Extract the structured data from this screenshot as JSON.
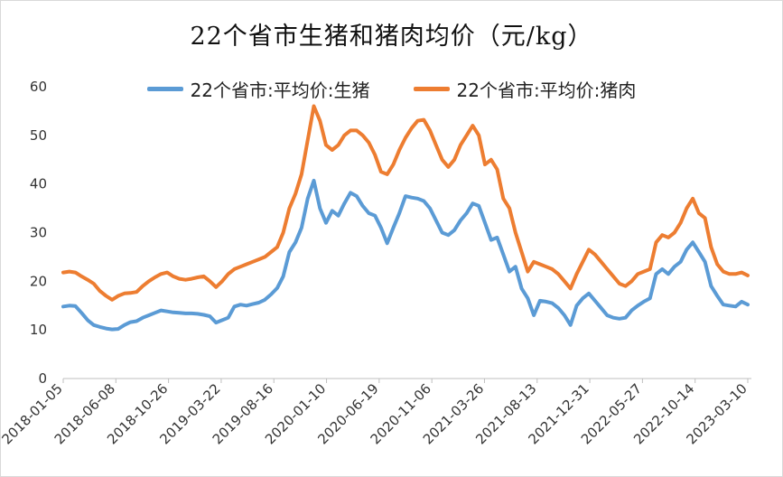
{
  "chart_data": {
    "type": "line",
    "title": "22个省市生猪和猪肉均价（元/kg）",
    "xlabel": "",
    "ylabel": "",
    "ylim": [
      0,
      60
    ],
    "yticks": [
      "0",
      "10",
      "20",
      "30",
      "40",
      "50",
      "60"
    ],
    "x_ticks": [
      "2018-01-05",
      "2018-06-08",
      "2018-10-26",
      "2019-03-22",
      "2019-08-16",
      "2020-01-10",
      "2020-06-19",
      "2020-11-06",
      "2021-03-26",
      "2021-08-13",
      "2021-12-31",
      "2022-05-27",
      "2022-10-14",
      "2023-03-10"
    ],
    "series": [
      {
        "name": "22个省市:平均价:生猪",
        "color": "#5b9bd5",
        "points": [
          [
            0,
            14.8
          ],
          [
            1,
            15
          ],
          [
            2,
            14.9
          ],
          [
            3,
            13.5
          ],
          [
            4,
            12
          ],
          [
            5,
            11
          ],
          [
            6,
            10.6
          ],
          [
            7,
            10.3
          ],
          [
            8,
            10.1
          ],
          [
            9,
            10.2
          ],
          [
            10,
            11
          ],
          [
            11,
            11.6
          ],
          [
            12,
            11.8
          ],
          [
            13,
            12.5
          ],
          [
            14,
            13
          ],
          [
            15,
            13.5
          ],
          [
            16,
            14
          ],
          [
            17,
            13.8
          ],
          [
            18,
            13.6
          ],
          [
            19,
            13.5
          ],
          [
            20,
            13.4
          ],
          [
            21,
            13.4
          ],
          [
            22,
            13.3
          ],
          [
            23,
            13.1
          ],
          [
            24,
            12.8
          ],
          [
            25,
            11.5
          ],
          [
            26,
            12
          ],
          [
            27,
            12.5
          ],
          [
            28,
            14.8
          ],
          [
            29,
            15.2
          ],
          [
            30,
            15
          ],
          [
            31,
            15.3
          ],
          [
            32,
            15.6
          ],
          [
            33,
            16.2
          ],
          [
            34,
            17.3
          ],
          [
            35,
            18.6
          ],
          [
            36,
            21
          ],
          [
            37,
            26
          ],
          [
            38,
            28
          ],
          [
            39,
            31
          ],
          [
            40,
            37
          ],
          [
            41,
            40.7
          ],
          [
            42,
            35
          ],
          [
            43,
            32
          ],
          [
            44,
            34.5
          ],
          [
            45,
            33.5
          ],
          [
            46,
            36
          ],
          [
            47,
            38.2
          ],
          [
            48,
            37.5
          ],
          [
            49,
            35.5
          ],
          [
            50,
            34
          ],
          [
            51,
            33.5
          ],
          [
            52,
            31
          ],
          [
            53,
            27.8
          ],
          [
            54,
            31
          ],
          [
            55,
            34
          ],
          [
            56,
            37.5
          ],
          [
            57,
            37.2
          ],
          [
            58,
            37
          ],
          [
            59,
            36.5
          ],
          [
            60,
            35
          ],
          [
            61,
            32.5
          ],
          [
            62,
            30
          ],
          [
            63,
            29.5
          ],
          [
            64,
            30.5
          ],
          [
            65,
            32.5
          ],
          [
            66,
            34
          ],
          [
            67,
            36
          ],
          [
            68,
            35.5
          ],
          [
            69,
            32
          ],
          [
            70,
            28.5
          ],
          [
            71,
            29
          ],
          [
            72,
            25.5
          ],
          [
            73,
            22
          ],
          [
            74,
            23
          ],
          [
            75,
            18.5
          ],
          [
            76,
            16.5
          ],
          [
            77,
            13
          ],
          [
            78,
            16
          ],
          [
            79,
            15.8
          ],
          [
            80,
            15.5
          ],
          [
            81,
            14.5
          ],
          [
            82,
            13
          ],
          [
            83,
            11
          ],
          [
            84,
            15
          ],
          [
            85,
            16.5
          ],
          [
            86,
            17.5
          ],
          [
            87,
            16
          ],
          [
            88,
            14.5
          ],
          [
            89,
            13
          ],
          [
            90,
            12.5
          ],
          [
            91,
            12.3
          ],
          [
            92,
            12.5
          ],
          [
            93,
            14
          ],
          [
            94,
            15
          ],
          [
            95,
            15.8
          ],
          [
            96,
            16.5
          ],
          [
            97,
            21.5
          ],
          [
            98,
            22.5
          ],
          [
            99,
            21.5
          ],
          [
            100,
            23
          ],
          [
            101,
            24
          ],
          [
            102,
            26.5
          ],
          [
            103,
            28
          ],
          [
            104,
            26
          ],
          [
            105,
            24
          ],
          [
            106,
            19
          ],
          [
            107,
            17
          ],
          [
            108,
            15.2
          ],
          [
            109,
            15
          ],
          [
            110,
            14.8
          ],
          [
            111,
            15.8
          ],
          [
            112,
            15.2
          ]
        ]
      },
      {
        "name": "22个省市:平均价:猪肉",
        "color": "#ed7d31",
        "points": [
          [
            0,
            21.8
          ],
          [
            1,
            22
          ],
          [
            2,
            21.8
          ],
          [
            3,
            21
          ],
          [
            4,
            20.3
          ],
          [
            5,
            19.5
          ],
          [
            6,
            18
          ],
          [
            7,
            17
          ],
          [
            8,
            16.2
          ],
          [
            9,
            17
          ],
          [
            10,
            17.5
          ],
          [
            11,
            17.6
          ],
          [
            12,
            17.8
          ],
          [
            13,
            19
          ],
          [
            14,
            20
          ],
          [
            15,
            20.8
          ],
          [
            16,
            21.5
          ],
          [
            17,
            21.8
          ],
          [
            18,
            21
          ],
          [
            19,
            20.5
          ],
          [
            20,
            20.3
          ],
          [
            21,
            20.5
          ],
          [
            22,
            20.8
          ],
          [
            23,
            21
          ],
          [
            24,
            20
          ],
          [
            25,
            18.8
          ],
          [
            26,
            20
          ],
          [
            27,
            21.5
          ],
          [
            28,
            22.5
          ],
          [
            29,
            23
          ],
          [
            30,
            23.5
          ],
          [
            31,
            24
          ],
          [
            32,
            24.5
          ],
          [
            33,
            25
          ],
          [
            34,
            26
          ],
          [
            35,
            27
          ],
          [
            36,
            30
          ],
          [
            37,
            35
          ],
          [
            38,
            38
          ],
          [
            39,
            42
          ],
          [
            40,
            49
          ],
          [
            41,
            56
          ],
          [
            42,
            53
          ],
          [
            43,
            48
          ],
          [
            44,
            47
          ],
          [
            45,
            48
          ],
          [
            46,
            50
          ],
          [
            47,
            51
          ],
          [
            48,
            51
          ],
          [
            49,
            50
          ],
          [
            50,
            48.5
          ],
          [
            51,
            46
          ],
          [
            52,
            42.5
          ],
          [
            53,
            42
          ],
          [
            54,
            44
          ],
          [
            55,
            47
          ],
          [
            56,
            49.5
          ],
          [
            57,
            51.5
          ],
          [
            58,
            53
          ],
          [
            59,
            53.2
          ],
          [
            60,
            51
          ],
          [
            61,
            48
          ],
          [
            62,
            45
          ],
          [
            63,
            43.5
          ],
          [
            64,
            45
          ],
          [
            65,
            48
          ],
          [
            66,
            50
          ],
          [
            67,
            52
          ],
          [
            68,
            50
          ],
          [
            69,
            44
          ],
          [
            70,
            45
          ],
          [
            71,
            43
          ],
          [
            72,
            37
          ],
          [
            73,
            35
          ],
          [
            74,
            30
          ],
          [
            75,
            26
          ],
          [
            76,
            22
          ],
          [
            77,
            24
          ],
          [
            78,
            23.5
          ],
          [
            79,
            23
          ],
          [
            80,
            22.5
          ],
          [
            81,
            21.5
          ],
          [
            82,
            20
          ],
          [
            83,
            18.5
          ],
          [
            84,
            21.5
          ],
          [
            85,
            24
          ],
          [
            86,
            26.5
          ],
          [
            87,
            25.5
          ],
          [
            88,
            24
          ],
          [
            89,
            22.5
          ],
          [
            90,
            21
          ],
          [
            91,
            19.5
          ],
          [
            92,
            19
          ],
          [
            93,
            20
          ],
          [
            94,
            21.5
          ],
          [
            95,
            22
          ],
          [
            96,
            22.5
          ],
          [
            97,
            28
          ],
          [
            98,
            29.5
          ],
          [
            99,
            29
          ],
          [
            100,
            30
          ],
          [
            101,
            32
          ],
          [
            102,
            35
          ],
          [
            103,
            37
          ],
          [
            104,
            34
          ],
          [
            105,
            33
          ],
          [
            106,
            27
          ],
          [
            107,
            23.5
          ],
          [
            108,
            22
          ],
          [
            109,
            21.5
          ],
          [
            110,
            21.5
          ],
          [
            111,
            21.8
          ],
          [
            112,
            21.2
          ]
        ]
      }
    ]
  }
}
